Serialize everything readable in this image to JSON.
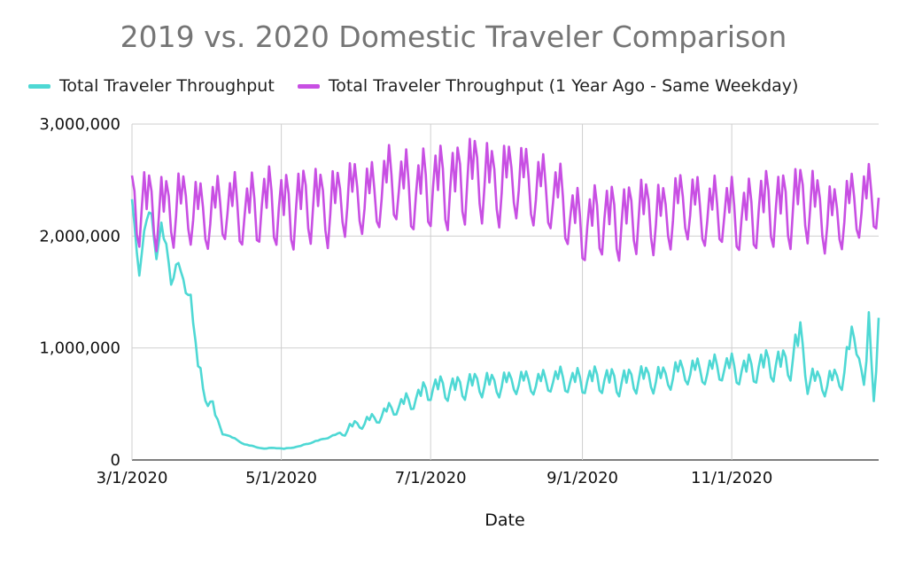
{
  "chart_data": {
    "type": "line",
    "title": "2019 vs. 2020 Domestic Traveler Comparison",
    "xlabel": "Date",
    "ylabel": "",
    "x_range": [
      "3/1/2020",
      "12/31/2020"
    ],
    "ylim": [
      0,
      3000000
    ],
    "yticks": [
      0,
      1000000,
      2000000,
      3000000
    ],
    "ytick_labels": [
      "0",
      "1,000,000",
      "2,000,000",
      "3,000,000"
    ],
    "xticks": [
      "2020-03-01",
      "2020-05-01",
      "2020-07-01",
      "2020-09-01",
      "2020-11-01"
    ],
    "xtick_labels": [
      "3/1/2020",
      "5/1/2020",
      "7/1/2020",
      "9/1/2020",
      "11/1/2020"
    ],
    "grid": true,
    "legend_position": "top",
    "series": [
      {
        "name": "Total Traveler Throughput",
        "color": "#4ed8d4",
        "points": [
          [
            "2020-03-01",
            2280000
          ],
          [
            "2020-03-04",
            1700000
          ],
          [
            "2020-03-07",
            2150000
          ],
          [
            "2020-03-09",
            2180000
          ],
          [
            "2020-03-11",
            1860000
          ],
          [
            "2020-03-13",
            2080000
          ],
          [
            "2020-03-15",
            1900000
          ],
          [
            "2020-03-17",
            1600000
          ],
          [
            "2020-03-19",
            1760000
          ],
          [
            "2020-03-21",
            1680000
          ],
          [
            "2020-03-23",
            1480000
          ],
          [
            "2020-03-25",
            1520000
          ],
          [
            "2020-03-27",
            950000
          ],
          [
            "2020-03-30",
            640000
          ],
          [
            "2020-04-02",
            560000
          ],
          [
            "2020-04-05",
            320000
          ],
          [
            "2020-04-08",
            230000
          ],
          [
            "2020-04-12",
            190000
          ],
          [
            "2020-04-16",
            140000
          ],
          [
            "2020-04-20",
            120000
          ],
          [
            "2020-04-24",
            100000
          ],
          [
            "2020-04-28",
            110000
          ],
          [
            "2020-05-02",
            100000
          ],
          [
            "2020-05-08",
            120000
          ],
          [
            "2020-05-14",
            160000
          ],
          [
            "2020-05-20",
            200000
          ],
          [
            "2020-05-26",
            250000
          ],
          [
            "2020-06-01",
            320000
          ],
          [
            "2020-06-07",
            370000
          ],
          [
            "2020-06-13",
            430000
          ],
          [
            "2020-06-19",
            500000
          ],
          [
            "2020-06-25",
            570000
          ],
          [
            "2020-07-01",
            640000
          ],
          [
            "2020-07-08",
            660000
          ],
          [
            "2020-07-15",
            670000
          ],
          [
            "2020-07-22",
            690000
          ],
          [
            "2020-07-29",
            700000
          ],
          [
            "2020-08-05",
            700000
          ],
          [
            "2020-08-12",
            710000
          ],
          [
            "2020-08-19",
            720000
          ],
          [
            "2020-08-26",
            720000
          ],
          [
            "2020-09-02",
            730000
          ],
          [
            "2020-09-09",
            720000
          ],
          [
            "2020-09-16",
            720000
          ],
          [
            "2020-09-23",
            730000
          ],
          [
            "2020-09-30",
            740000
          ],
          [
            "2020-10-07",
            770000
          ],
          [
            "2020-10-14",
            800000
          ],
          [
            "2020-10-21",
            820000
          ],
          [
            "2020-10-28",
            830000
          ],
          [
            "2020-11-04",
            820000
          ],
          [
            "2020-11-11",
            840000
          ],
          [
            "2020-11-18",
            860000
          ],
          [
            "2020-11-25",
            900000
          ],
          [
            "2020-11-29",
            1100000
          ],
          [
            "2020-12-02",
            720000
          ],
          [
            "2020-12-09",
            710000
          ],
          [
            "2020-12-16",
            750000
          ],
          [
            "2020-12-20",
            1050000
          ],
          [
            "2020-12-23",
            1080000
          ],
          [
            "2020-12-25",
            620000
          ],
          [
            "2020-12-27",
            1180000
          ],
          [
            "2020-12-29",
            620000
          ],
          [
            "2020-12-31",
            1280000
          ]
        ]
      },
      {
        "name": "Total Traveler Throughput (1 Year Ago - Same Weekday)",
        "color": "#c84fe3",
        "points": [
          [
            "2020-03-01",
            2280000
          ],
          [
            "2020-03-15",
            2300000
          ],
          [
            "2020-04-01",
            2250000
          ],
          [
            "2020-04-15",
            2280000
          ],
          [
            "2020-05-01",
            2300000
          ],
          [
            "2020-05-15",
            2320000
          ],
          [
            "2020-06-01",
            2380000
          ],
          [
            "2020-06-15",
            2480000
          ],
          [
            "2020-07-01",
            2450000
          ],
          [
            "2020-07-15",
            2560000
          ],
          [
            "2020-08-01",
            2540000
          ],
          [
            "2020-08-15",
            2480000
          ],
          [
            "2020-09-01",
            2130000
          ],
          [
            "2020-09-15",
            2200000
          ],
          [
            "2020-10-01",
            2230000
          ],
          [
            "2020-10-15",
            2300000
          ],
          [
            "2020-11-01",
            2220000
          ],
          [
            "2020-11-15",
            2270000
          ],
          [
            "2020-11-28",
            2350000
          ],
          [
            "2020-12-15",
            2200000
          ],
          [
            "2020-12-31",
            2450000
          ]
        ]
      }
    ]
  }
}
